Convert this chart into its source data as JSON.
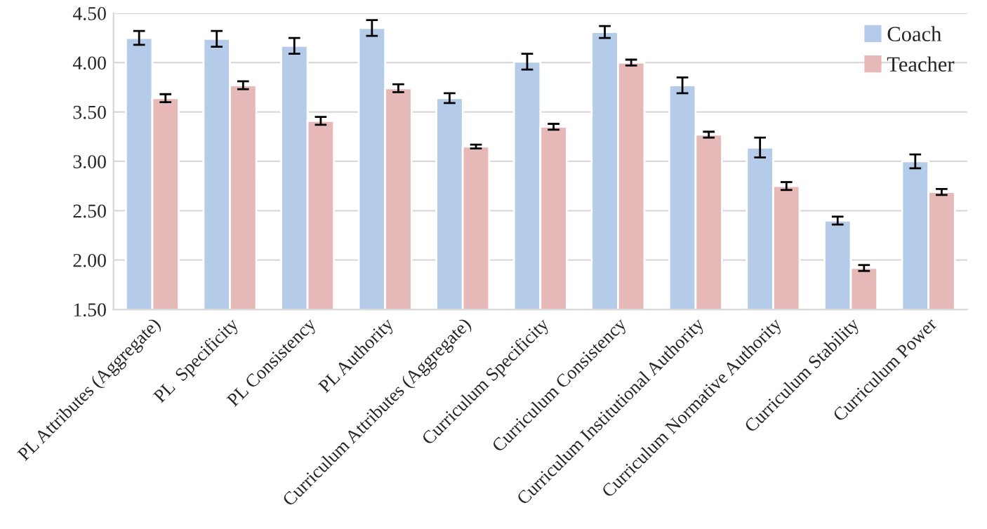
{
  "chart_data": {
    "type": "bar",
    "categories": [
      "PL Attributes (Aggregate)",
      "PL  Specificity",
      "PL Consistency",
      "PL Authority",
      "Curriculum Attributes (Aggregate)",
      "Curriculum Specificity",
      "Curriculum Consistency",
      "Curriculum Institutional Authority",
      "Curriculum Normative Authority",
      "Curriculum Stability",
      "Curriculum Power"
    ],
    "series": [
      {
        "name": "Coach",
        "color": "#b4cbe9",
        "values": [
          4.25,
          4.24,
          4.17,
          4.35,
          3.64,
          4.01,
          4.31,
          3.77,
          3.14,
          2.4,
          3.0
        ],
        "errors": [
          0.07,
          0.08,
          0.08,
          0.08,
          0.05,
          0.08,
          0.06,
          0.08,
          0.1,
          0.04,
          0.07
        ]
      },
      {
        "name": "Teacher",
        "color": "#e6b8b7",
        "values": [
          3.64,
          3.77,
          3.41,
          3.74,
          3.15,
          3.35,
          4.0,
          3.27,
          2.75,
          1.92,
          2.69
        ],
        "errors": [
          0.04,
          0.04,
          0.04,
          0.04,
          0.02,
          0.03,
          0.03,
          0.03,
          0.04,
          0.03,
          0.03
        ]
      }
    ],
    "ylim": [
      1.5,
      4.5
    ],
    "yticks": [
      {
        "value": 1.5,
        "label": "1.50"
      },
      {
        "value": 2.0,
        "label": "2.00"
      },
      {
        "value": 2.5,
        "label": "2.50"
      },
      {
        "value": 3.0,
        "label": "3.00"
      },
      {
        "value": 3.5,
        "label": "3.50"
      },
      {
        "value": 4.0,
        "label": "4.00"
      },
      {
        "value": 4.5,
        "label": "4.50"
      }
    ],
    "grid": "y",
    "legend": "top right"
  }
}
